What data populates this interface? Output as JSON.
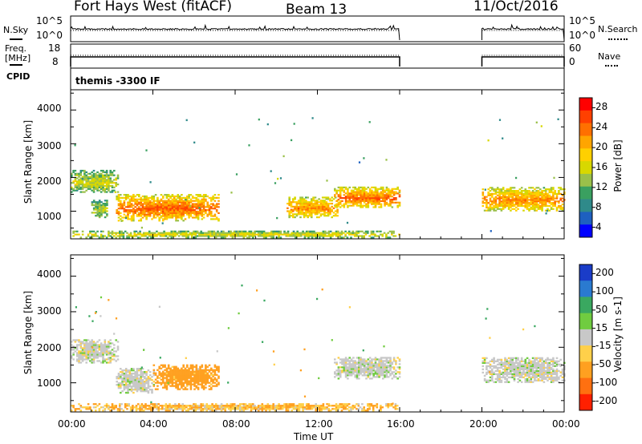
{
  "header": {
    "radar": "Fort Hays West (fitACF)",
    "beam": "Beam 13",
    "date": "11/Oct/2016"
  },
  "panels": {
    "nsky": {
      "left_label": "N.Sky",
      "left_ticks": [
        "10^5",
        "10^0"
      ],
      "right_ticks": [
        "10^5",
        "10^0"
      ],
      "right_label": "N.Search"
    },
    "freq": {
      "left_label_1": "Freq.",
      "left_label_2": "[MHz]",
      "left_ticks": [
        "18",
        "8"
      ],
      "right_ticks": [
        "60",
        "0"
      ],
      "right_label": "Nave"
    },
    "cpid": {
      "left_label": "CPID",
      "value": "themis -3300 IF"
    }
  },
  "axes": {
    "xlabel": "Time UT",
    "xticks": [
      "00:00",
      "04:00",
      "08:00",
      "12:00",
      "16:00",
      "20:00",
      "00:00"
    ],
    "ylabel": "Slant Range [km]",
    "yticks": [
      "1000",
      "2000",
      "3000",
      "4000"
    ]
  },
  "power_scale": {
    "label": "Power [dB]",
    "ticks": [
      "28",
      "24",
      "20",
      "16",
      "12",
      "8",
      "4"
    ],
    "colors": [
      "#ff0000",
      "#ff4000",
      "#ff7000",
      "#ffa500",
      "#ffd000",
      "#d8d800",
      "#9ac04a",
      "#3aa060",
      "#2f8a8a",
      "#1e60c0",
      "#0000ff"
    ]
  },
  "velocity_scale": {
    "label": "Velocity [m s-1]",
    "ticks": [
      "200",
      "100",
      "50",
      "15",
      "-15",
      "-50",
      "-100",
      "-200"
    ],
    "colors": [
      "#1a3cc8",
      "#2a7ad0",
      "#3aa860",
      "#70cc40",
      "#c8c8c8",
      "#ffd04a",
      "#ffa020",
      "#ff7010",
      "#ff2000"
    ]
  },
  "chart_data": [
    {
      "type": "heatmap",
      "title": "Power",
      "xlabel": "Time UT",
      "ylabel": "Slant Range [km]",
      "xlim": [
        0,
        24
      ],
      "ylim": [
        180,
        4600
      ],
      "colorbar_label": "Power [dB]",
      "colorbar_range": [
        0,
        30
      ],
      "data_gap_hours": [
        16,
        20
      ],
      "echo_regions": [
        {
          "t_start": 0.0,
          "t_end": 2.3,
          "range_start": 1550,
          "range_end": 2200,
          "power_db": 13
        },
        {
          "t_start": 1.0,
          "t_end": 1.8,
          "range_start": 800,
          "range_end": 1300,
          "power_db": 12
        },
        {
          "t_start": 2.2,
          "t_end": 7.2,
          "range_start": 700,
          "range_end": 1500,
          "power_db": 22
        },
        {
          "t_start": 0.0,
          "t_end": 16.0,
          "range_start": 200,
          "range_end": 400,
          "power_db": 14
        },
        {
          "t_start": 10.5,
          "t_end": 13.0,
          "range_start": 800,
          "range_end": 1400,
          "power_db": 20
        },
        {
          "t_start": 12.8,
          "t_end": 16.0,
          "range_start": 1100,
          "range_end": 1700,
          "power_db": 22
        },
        {
          "t_start": 20.0,
          "t_end": 24.0,
          "range_start": 1000,
          "range_end": 1700,
          "power_db": 20
        }
      ]
    },
    {
      "type": "heatmap",
      "title": "Velocity",
      "xlabel": "Time UT",
      "ylabel": "Slant Range [km]",
      "xlim": [
        0,
        24
      ],
      "ylim": [
        180,
        4600
      ],
      "colorbar_label": "Velocity [m s-1]",
      "colorbar_range": [
        -200,
        200
      ],
      "data_gap_hours": [
        16,
        20
      ],
      "echo_regions": [
        {
          "t_start": 0.0,
          "t_end": 2.3,
          "range_start": 1550,
          "range_end": 2200,
          "velocity": 0
        },
        {
          "t_start": 2.2,
          "t_end": 4.0,
          "range_start": 700,
          "range_end": 1400,
          "velocity": 0
        },
        {
          "t_start": 4.0,
          "t_end": 7.2,
          "range_start": 800,
          "range_end": 1500,
          "velocity": -50
        },
        {
          "t_start": 0.0,
          "t_end": 16.0,
          "range_start": 200,
          "range_end": 400,
          "velocity": -30
        },
        {
          "t_start": 12.8,
          "t_end": 16.0,
          "range_start": 1100,
          "range_end": 1700,
          "velocity": 0
        },
        {
          "t_start": 20.0,
          "t_end": 24.0,
          "range_start": 1000,
          "range_end": 1700,
          "velocity": 0
        }
      ]
    }
  ]
}
